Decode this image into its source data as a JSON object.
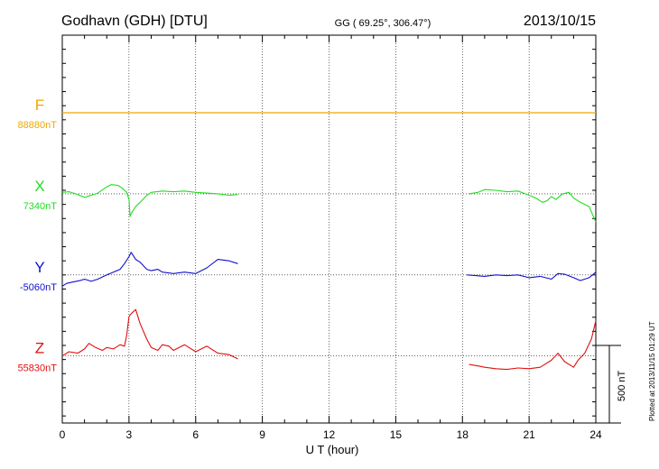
{
  "header": {
    "station": "Godhavn (GDH)  [DTU]",
    "coords": "GG ( 69.25°, 306.47°)",
    "date": "2013/10/15"
  },
  "side_note": "Plotted at 2013/11/15 01:29 UT",
  "scale_label": "500 nT",
  "colors": {
    "F": "#f0a800",
    "X": "#22dd22",
    "Y": "#1010d0",
    "Z": "#e01010",
    "axis": "#000000"
  },
  "chart_data": {
    "type": "line",
    "xlabel": "U T (hour)",
    "xlim": [
      0,
      24
    ],
    "x_ticks": [
      0,
      3,
      6,
      9,
      12,
      15,
      18,
      21,
      24
    ],
    "x_tick_labels": [
      "0",
      "3",
      "6",
      "9",
      "12",
      "15",
      "18",
      "21",
      "24"
    ],
    "y_unit": "nT",
    "y_span_nT": [
      -1050,
      1700
    ],
    "grid": true,
    "scale_bar_nT": 500,
    "series": [
      {
        "name": "F",
        "baseline_label": "88880nT",
        "offset_nT": 1150,
        "x": [
          0,
          24
        ],
        "y": [
          0,
          0
        ]
      },
      {
        "name": "X",
        "baseline_label": "7340nT",
        "offset_nT": 575,
        "x": [
          0,
          0.3,
          0.6,
          1.0,
          1.3,
          1.6,
          2.0,
          2.2,
          2.5,
          2.7,
          2.9,
          3.0,
          3.05,
          3.1,
          3.3,
          3.5,
          3.8,
          4.0,
          4.5,
          5.0,
          5.5,
          6.0,
          6.5,
          7.0,
          7.5,
          7.9,
          null,
          18.3,
          18.7,
          19.0,
          19.5,
          20.0,
          20.5,
          21.0,
          21.3,
          21.6,
          21.8,
          22.0,
          22.2,
          22.5,
          22.8,
          23.0,
          23.3,
          23.7,
          24.0
        ],
        "y": [
          10,
          15,
          0,
          -25,
          -10,
          5,
          50,
          65,
          60,
          40,
          10,
          -40,
          -160,
          -140,
          -90,
          -60,
          -10,
          10,
          20,
          15,
          20,
          10,
          5,
          0,
          -10,
          -5,
          null,
          0,
          10,
          30,
          25,
          15,
          20,
          -10,
          -30,
          -60,
          -50,
          -20,
          -40,
          0,
          10,
          -30,
          -60,
          -90,
          -200
        ]
      },
      {
        "name": "Y",
        "baseline_label": "-5060nT",
        "offset_nT": 0,
        "x": [
          0,
          0.2,
          0.5,
          0.8,
          1.0,
          1.3,
          1.6,
          2.0,
          2.3,
          2.6,
          2.8,
          3.0,
          3.1,
          3.3,
          3.5,
          3.8,
          4.0,
          4.3,
          4.5,
          5.0,
          5.5,
          6.0,
          6.5,
          7.0,
          7.5,
          7.9,
          null,
          18.2,
          18.6,
          19.0,
          19.5,
          20.0,
          20.5,
          21.0,
          21.5,
          22.0,
          22.3,
          22.6,
          23.0,
          23.3,
          23.7,
          24.0
        ],
        "y": [
          -80,
          -60,
          -50,
          -40,
          -30,
          -45,
          -30,
          0,
          20,
          40,
          80,
          130,
          160,
          110,
          90,
          40,
          30,
          40,
          20,
          10,
          20,
          10,
          50,
          110,
          100,
          80,
          null,
          0,
          -5,
          -10,
          0,
          -5,
          0,
          -20,
          -10,
          -30,
          10,
          5,
          -20,
          -40,
          -20,
          20
        ]
      },
      {
        "name": "Z",
        "baseline_label": "55830nT",
        "offset_nT": -575,
        "x": [
          0,
          0.3,
          0.7,
          1.0,
          1.2,
          1.5,
          1.8,
          2.0,
          2.3,
          2.6,
          2.8,
          2.9,
          3.0,
          3.1,
          3.3,
          3.5,
          3.8,
          4.0,
          4.3,
          4.5,
          4.8,
          5.0,
          5.5,
          6.0,
          6.5,
          7.0,
          7.5,
          7.9,
          null,
          18.3,
          18.7,
          19.0,
          19.5,
          20.0,
          20.5,
          21.0,
          21.5,
          22.0,
          22.3,
          22.6,
          23.0,
          23.2,
          23.5,
          23.8,
          24.0
        ],
        "y": [
          0,
          30,
          20,
          50,
          90,
          60,
          40,
          60,
          50,
          80,
          70,
          150,
          280,
          300,
          330,
          230,
          120,
          60,
          40,
          80,
          70,
          40,
          80,
          30,
          70,
          20,
          10,
          -20,
          null,
          -60,
          -70,
          -80,
          -90,
          -95,
          -85,
          -90,
          -80,
          -30,
          20,
          -40,
          -80,
          -30,
          20,
          120,
          250
        ]
      }
    ]
  }
}
